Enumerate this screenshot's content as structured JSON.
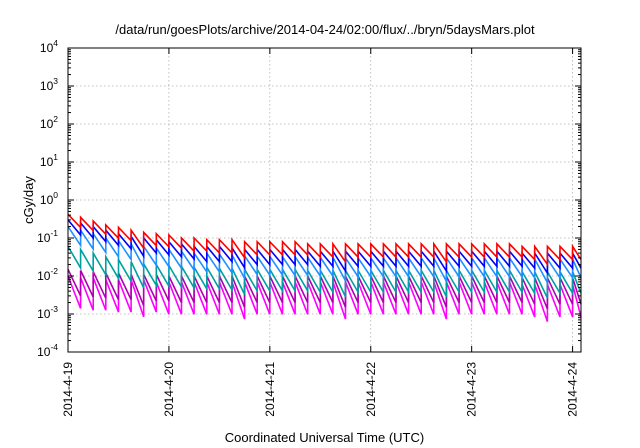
{
  "chart_data": {
    "type": "line",
    "title": "/data/run/goesPlots/archive/2014-04-24/02:00/flux/../bryn/5daysMars.plot",
    "xlabel": "Coordinated Universal Time (UTC)",
    "ylabel": "cGy/day",
    "y_scale": "log",
    "grid": true,
    "ylim": [
      0.0001,
      10000
    ],
    "xlim": [
      "2014-04-19 00:00",
      "2014-04-24 02:00"
    ],
    "x_ticks": [
      "2014-4-19",
      "2014-4-20",
      "2014-4-21",
      "2014-4-22",
      "2014-4-23",
      "2014-4-24"
    ],
    "y_ticks": [
      {
        "base": "10",
        "exp": "-4",
        "value": 0.0001
      },
      {
        "base": "10",
        "exp": "-3",
        "value": 0.001
      },
      {
        "base": "10",
        "exp": "-2",
        "value": 0.01
      },
      {
        "base": "10",
        "exp": "-1",
        "value": 0.1
      },
      {
        "base": "10",
        "exp": "0",
        "value": 1
      },
      {
        "base": "10",
        "exp": "1",
        "value": 10
      },
      {
        "base": "10",
        "exp": "2",
        "value": 100
      },
      {
        "base": "10",
        "exp": "3",
        "value": 1000
      },
      {
        "base": "10",
        "exp": "4",
        "value": 10000
      }
    ],
    "sawtooth_period_hours": 3,
    "series": [
      {
        "color": "#ff0000",
        "values": [
          0.42,
          0.35,
          0.28,
          0.22,
          0.19,
          0.16,
          0.14,
          0.13,
          0.12,
          0.1,
          0.1,
          0.09,
          0.09,
          0.09,
          0.08,
          0.08,
          0.08,
          0.08,
          0.08,
          0.07,
          0.07,
          0.07,
          0.07,
          0.07,
          0.07,
          0.07,
          0.07,
          0.07,
          0.07,
          0.07,
          0.07,
          0.07,
          0.07,
          0.07,
          0.07,
          0.07,
          0.06,
          0.06,
          0.06,
          0.06,
          0.06
        ]
      },
      {
        "color": "#0000ff",
        "values": [
          0.3,
          0.25,
          0.2,
          0.16,
          0.13,
          0.11,
          0.1,
          0.09,
          0.08,
          0.07,
          0.06,
          0.06,
          0.06,
          0.055,
          0.05,
          0.05,
          0.05,
          0.05,
          0.05,
          0.045,
          0.045,
          0.045,
          0.045,
          0.045,
          0.045,
          0.045,
          0.045,
          0.045,
          0.045,
          0.045,
          0.045,
          0.045,
          0.045,
          0.045,
          0.045,
          0.045,
          0.04,
          0.04,
          0.04,
          0.04,
          0.04
        ]
      },
      {
        "color": "#1e90ff",
        "values": [
          0.2,
          0.16,
          0.13,
          0.1,
          0.085,
          0.07,
          0.06,
          0.055,
          0.05,
          0.045,
          0.04,
          0.04,
          0.038,
          0.036,
          0.034,
          0.033,
          0.033,
          0.032,
          0.032,
          0.031,
          0.031,
          0.031,
          0.03,
          0.03,
          0.03,
          0.03,
          0.03,
          0.03,
          0.03,
          0.03,
          0.03,
          0.03,
          0.03,
          0.03,
          0.03,
          0.03,
          0.028,
          0.028,
          0.028,
          0.028,
          0.028
        ]
      },
      {
        "color": "#00a0a0",
        "values": [
          0.06,
          0.05,
          0.04,
          0.032,
          0.027,
          0.024,
          0.021,
          0.02,
          0.019,
          0.018,
          0.017,
          0.017,
          0.016,
          0.016,
          0.015,
          0.015,
          0.015,
          0.015,
          0.015,
          0.014,
          0.014,
          0.014,
          0.014,
          0.014,
          0.014,
          0.014,
          0.014,
          0.014,
          0.014,
          0.014,
          0.014,
          0.014,
          0.014,
          0.014,
          0.014,
          0.014,
          0.013,
          0.013,
          0.013,
          0.013,
          0.013
        ]
      },
      {
        "color": "#b000b0",
        "values": [
          0.015,
          0.014,
          0.013,
          0.012,
          0.012,
          0.011,
          0.011,
          0.011,
          0.01,
          0.01,
          0.01,
          0.01,
          0.01,
          0.01,
          0.01,
          0.01,
          0.01,
          0.01,
          0.01,
          0.01,
          0.01,
          0.01,
          0.01,
          0.01,
          0.01,
          0.01,
          0.01,
          0.01,
          0.01,
          0.01,
          0.01,
          0.01,
          0.01,
          0.01,
          0.01,
          0.01,
          0.009,
          0.009,
          0.009,
          0.009,
          0.009
        ]
      },
      {
        "color": "#ff00ff",
        "values": [
          0.01,
          0.009,
          0.009,
          0.008,
          0.008,
          0.008,
          0.008,
          0.007,
          0.007,
          0.007,
          0.007,
          0.007,
          0.007,
          0.007,
          0.007,
          0.007,
          0.007,
          0.007,
          0.007,
          0.007,
          0.007,
          0.007,
          0.007,
          0.007,
          0.007,
          0.007,
          0.007,
          0.007,
          0.007,
          0.007,
          0.007,
          0.007,
          0.007,
          0.007,
          0.007,
          0.007,
          0.006,
          0.006,
          0.006,
          0.006,
          0.006
        ]
      }
    ]
  }
}
